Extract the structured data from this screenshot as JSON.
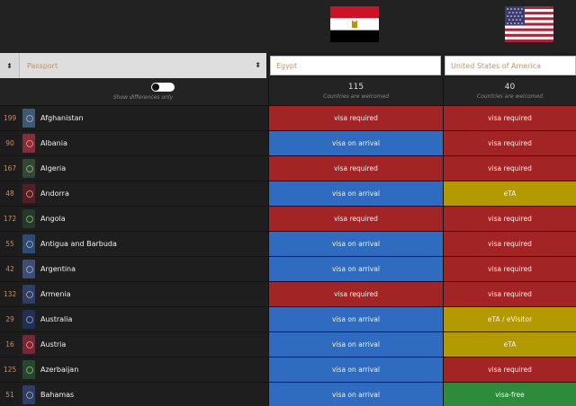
{
  "filters": {
    "passport_sort_label": "Passport",
    "sort_arrows": "⬍",
    "column_a_value": "Egypt",
    "column_b_value": "United States of America"
  },
  "summary": {
    "toggle_label": "Show differences only",
    "column_a_count": "115",
    "column_b_count": "40",
    "count_caption": "Countries are welcomed"
  },
  "colors": {
    "visa_required": "#a32424",
    "visa_on_arrival": "#2f6bbf",
    "eta": "#b29a00",
    "visa_free": "#2e8b3c",
    "accent": "#c79061"
  },
  "rows": [
    {
      "rank": "199",
      "country": "Afghanistan",
      "passport_color": "#3b5a7a",
      "a": "visa required",
      "a_type": "vr",
      "b": "visa required",
      "b_type": "vr"
    },
    {
      "rank": "90",
      "country": "Albania",
      "passport_color": "#8a2b3c",
      "a": "visa on arrival",
      "a_type": "voa",
      "b": "visa required",
      "b_type": "vr"
    },
    {
      "rank": "167",
      "country": "Algeria",
      "passport_color": "#2f4a34",
      "a": "visa required",
      "a_type": "vr",
      "b": "visa required",
      "b_type": "vr"
    },
    {
      "rank": "48",
      "country": "Andorra",
      "passport_color": "#5a1c24",
      "a": "visa on arrival",
      "a_type": "voa",
      "b": "eTA",
      "b_type": "eta"
    },
    {
      "rank": "172",
      "country": "Angola",
      "passport_color": "#1f3d2a",
      "a": "visa required",
      "a_type": "vr",
      "b": "visa required",
      "b_type": "vr"
    },
    {
      "rank": "55",
      "country": "Antigua and Barbuda",
      "passport_color": "#2a4c7a",
      "a": "visa on arrival",
      "a_type": "voa",
      "b": "visa required",
      "b_type": "vr"
    },
    {
      "rank": "42",
      "country": "Argentina",
      "passport_color": "#3a4e7a",
      "a": "visa on arrival",
      "a_type": "voa",
      "b": "visa required",
      "b_type": "vr"
    },
    {
      "rank": "132",
      "country": "Armenia",
      "passport_color": "#2c3e6a",
      "a": "visa required",
      "a_type": "vr",
      "b": "visa required",
      "b_type": "vr"
    },
    {
      "rank": "29",
      "country": "Australia",
      "passport_color": "#1e2f5a",
      "a": "visa on arrival",
      "a_type": "voa",
      "b": "eTA / eVisitor",
      "b_type": "eta"
    },
    {
      "rank": "16",
      "country": "Austria",
      "passport_color": "#7a2436",
      "a": "visa on arrival",
      "a_type": "voa",
      "b": "eTA",
      "b_type": "eta"
    },
    {
      "rank": "125",
      "country": "Azerbaijan",
      "passport_color": "#1f4a2e",
      "a": "visa on arrival",
      "a_type": "voa",
      "b": "visa required",
      "b_type": "vr"
    },
    {
      "rank": "51",
      "country": "Bahamas",
      "passport_color": "#2a3f6a",
      "a": "visa on arrival",
      "a_type": "voa",
      "b": "visa-free",
      "b_type": "vf"
    }
  ]
}
